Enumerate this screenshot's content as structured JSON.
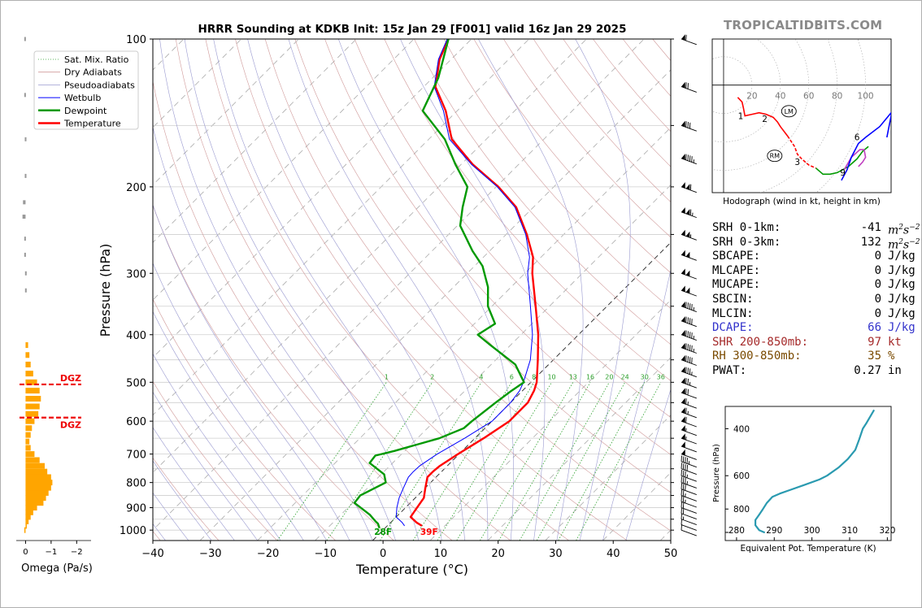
{
  "site": "TROPICALTIDBITS.COM",
  "chart_data": [
    {
      "type": "line",
      "name": "skewt",
      "title": "HRRR Sounding at KDKB Init: 15z Jan 29 [F001] valid 16z Jan 29 2025",
      "xlabel": "Temperature (°C)",
      "ylabel": "Pressure (hPa)",
      "xlim": [
        -40,
        50
      ],
      "ylim": [
        1050,
        100
      ],
      "y_scale": "log",
      "x_ticks": [
        -40,
        -30,
        -20,
        -10,
        0,
        10,
        20,
        30,
        40,
        50
      ],
      "x_tick_labels": [
        "−40",
        "−30",
        "−20",
        "−10",
        "0",
        "10",
        "20",
        "30",
        "40",
        "50"
      ],
      "y_ticks": [
        1000,
        900,
        800,
        700,
        600,
        500,
        400,
        300,
        200,
        100
      ],
      "y_tick_labels": [
        "1000",
        "900",
        "800",
        "700",
        "600",
        "500",
        "400",
        "300",
        "200",
        "100"
      ],
      "legend": {
        "position": "top-left",
        "entries": [
          {
            "label": "Sat. Mix. Ratio",
            "color": "#2ca02c",
            "style": "dotted"
          },
          {
            "label": "Dry Adiabats",
            "color": "#d09a9a",
            "style": "solid"
          },
          {
            "label": "Pseudoadiabats",
            "color": "#9a9ad0",
            "style": "solid"
          },
          {
            "label": "Wetbulb",
            "color": "#0000ff",
            "style": "solid"
          },
          {
            "label": "Dewpoint",
            "color": "#009900",
            "style": "solid"
          },
          {
            "label": "Temperature",
            "color": "#ff0000",
            "style": "solid"
          }
        ]
      },
      "mixing_ratio_labels": [
        "1",
        "2",
        "4",
        "6",
        "8",
        "10",
        "13",
        "16",
        "20",
        "24",
        "30",
        "36"
      ],
      "mixing_ratio_values": [
        1,
        2,
        4,
        6,
        8,
        10,
        13,
        16,
        20,
        24,
        30,
        36
      ],
      "series": [
        {
          "name": "Temperature",
          "color": "#ff0000",
          "p": [
            980,
            965,
            940,
            900,
            860,
            820,
            780,
            760,
            740,
            700,
            650,
            600,
            550,
            520,
            500,
            450,
            400,
            350,
            300,
            278,
            250,
            220,
            200,
            180,
            160,
            140,
            125,
            110,
            100
          ],
          "t": [
            6,
            4.5,
            2.5,
            2,
            1.5,
            0,
            -1.5,
            -1.5,
            -1.3,
            -0.2,
            1.5,
            3,
            3,
            2,
            1,
            -2.7,
            -7,
            -12.4,
            -18.7,
            -21.4,
            -26.4,
            -33,
            -39.6,
            -48,
            -56,
            -62,
            -68,
            -72,
            -74
          ]
        },
        {
          "name": "Wetbulb",
          "color": "#0000ff",
          "p": [
            980,
            965,
            940,
            900,
            860,
            820,
            780,
            760,
            740,
            700,
            650,
            600,
            550,
            520,
            500,
            450,
            400,
            350,
            300,
            278,
            250,
            220,
            200,
            180,
            160,
            140,
            125,
            110,
            100
          ],
          "t": [
            3,
            2,
            0,
            -1.5,
            -2.8,
            -3.8,
            -4.8,
            -4.9,
            -4.8,
            -3.8,
            -1.8,
            0,
            0,
            -0.5,
            -1.3,
            -4,
            -8,
            -13.3,
            -19.5,
            -22,
            -26.6,
            -33.2,
            -39.8,
            -48.2,
            -56.4,
            -62.4,
            -68.2,
            -72.2,
            -74.2
          ]
        },
        {
          "name": "Dewpoint",
          "color": "#009900",
          "p": [
            990,
            970,
            960,
            930,
            880,
            850,
            800,
            770,
            730,
            705,
            690,
            650,
            620,
            600,
            550,
            520,
            500,
            460,
            420,
            400,
            380,
            350,
            320,
            290,
            270,
            240,
            220,
            200,
            180,
            160,
            140,
            120,
            100
          ],
          "t": [
            -1,
            -2,
            -2.8,
            -5,
            -9.7,
            -10,
            -7.8,
            -9.5,
            -14,
            -14.3,
            -11.8,
            -6.2,
            -3.7,
            -3.5,
            -2.6,
            -1.9,
            -1.2,
            -5.8,
            -13.5,
            -17.5,
            -16.4,
            -20.7,
            -24,
            -28.6,
            -33,
            -39.5,
            -42.3,
            -45,
            -51,
            -57.2,
            -66,
            -69,
            -74
          ]
        }
      ],
      "annotations": [
        {
          "text": "28F",
          "color": "#009900",
          "t": 0,
          "p": 1000
        },
        {
          "text": "39F",
          "color": "#ff0000",
          "t": 8,
          "p": 1000
        }
      ]
    },
    {
      "type": "line",
      "name": "hodograph",
      "title": "",
      "xlabel": "Hodograph (wind in kt, height in km)",
      "ring_labels": [
        "20",
        "40",
        "60",
        "80",
        "100"
      ],
      "ring_values": [
        20,
        40,
        60,
        80,
        100
      ],
      "u_range": [
        -8,
        118
      ],
      "v_range": [
        -70,
        30
      ],
      "segments": [
        {
          "color": "#ff0000",
          "u": [
            10,
            13,
            14,
            15,
            20,
            25,
            30,
            35,
            38,
            40,
            45
          ],
          "v": [
            -8,
            -11,
            -15,
            -20,
            -19,
            -18,
            -19,
            -21,
            -24,
            -27,
            -33
          ]
        },
        {
          "color": "#ff0000",
          "style": "dashed",
          "u": [
            45,
            50,
            52,
            55,
            60,
            65
          ],
          "v": [
            -33,
            -40,
            -45,
            -48,
            -52,
            -54
          ]
        },
        {
          "color": "#009900",
          "u": [
            65,
            70,
            75,
            80,
            88,
            94,
            98,
            102
          ],
          "v": [
            -54,
            -58,
            -58,
            -57,
            -53,
            -48,
            -43,
            -40
          ]
        },
        {
          "color": "#c040c0",
          "u": [
            95,
            98,
            100,
            99,
            96,
            90,
            85
          ],
          "v": [
            -53,
            -50,
            -47,
            -42,
            -42,
            -47,
            -55
          ]
        },
        {
          "color": "#0000ff",
          "u": [
            83,
            87,
            90,
            95,
            100,
            110,
            118,
            118,
            115
          ],
          "v": [
            -62,
            -55,
            -47,
            -38,
            -34,
            -27,
            -18,
            -20,
            -34
          ]
        }
      ],
      "height_labels": [
        {
          "text": "1",
          "u": 12,
          "v": -22
        },
        {
          "text": "2",
          "u": 29,
          "v": -24
        },
        {
          "text": "3",
          "u": 52,
          "v": -52
        },
        {
          "text": "6",
          "u": 94,
          "v": -36
        },
        {
          "text": "9",
          "u": 84,
          "v": -59
        }
      ],
      "markers": [
        {
          "text": "LM",
          "u": 46,
          "v": -17
        },
        {
          "text": "RM",
          "u": 36,
          "v": -46
        }
      ]
    },
    {
      "type": "line",
      "name": "theta_e",
      "title": "",
      "xlabel": "Equivalent Pot. Temperature (K)",
      "ylabel": "Pressure (hPa)",
      "xlim": [
        277,
        321
      ],
      "ylim": [
        1050,
        330
      ],
      "x_ticks": [
        280,
        290,
        300,
        310,
        320
      ],
      "x_tick_labels": [
        "280",
        "290",
        "300",
        "310",
        "320"
      ],
      "y_ticks": [
        800,
        600,
        400
      ],
      "y_tick_labels": [
        "800",
        "600",
        "400"
      ],
      "series": [
        {
          "name": "Theta-e",
          "color": "#2a9ab0",
          "p": [
            980,
            960,
            920,
            880,
            840,
            800,
            760,
            720,
            700,
            680,
            650,
            620,
            600,
            560,
            520,
            480,
            440,
            400,
            380,
            340
          ],
          "t": [
            287.5,
            286,
            285,
            285,
            286,
            287,
            288,
            289.5,
            291.5,
            294,
            298,
            302,
            304,
            307,
            309.5,
            311.5,
            312.5,
            313.5,
            314.5,
            316.5
          ]
        }
      ]
    },
    {
      "type": "bar",
      "name": "omega",
      "title": "",
      "xlabel": "Omega (Pa/s)",
      "x_ticks": [
        0,
        -1,
        -2
      ],
      "x_tick_labels": [
        "0",
        "−1",
        "−2"
      ],
      "xlim": [
        0.3,
        -2.5
      ],
      "bar_color": "#ffa500",
      "dgz_labels": [
        "DGZ",
        "DGZ"
      ],
      "dgz_pressures": [
        505,
        590
      ],
      "bars": {
        "p": [
          1000,
          980,
          960,
          940,
          920,
          900,
          880,
          860,
          840,
          820,
          800,
          780,
          760,
          740,
          720,
          700,
          680,
          660,
          640,
          620,
          600,
          580,
          560,
          540,
          520,
          500,
          480,
          460,
          440,
          420
        ],
        "omega": [
          0.05,
          -0.05,
          -0.12,
          -0.2,
          -0.3,
          -0.45,
          -0.7,
          -0.8,
          -0.9,
          -1.0,
          -1.05,
          -1.0,
          -0.85,
          -0.75,
          -0.55,
          -0.35,
          -0.2,
          -0.15,
          -0.2,
          -0.25,
          -0.35,
          -0.5,
          -0.55,
          -0.6,
          -0.55,
          -0.45,
          -0.3,
          -0.2,
          -0.15,
          -0.1
        ]
      },
      "gray_bars": {
        "p": [
          100,
          130,
          160,
          190,
          215,
          230,
          255,
          275,
          300,
          325
        ],
        "omega": [
          0.05,
          0.05,
          0.03,
          0.03,
          0.1,
          0.12,
          0.05,
          0.05,
          0.02,
          0.02
        ]
      }
    }
  ],
  "indices": {
    "srh": [
      {
        "label": "SRH 0-1km:",
        "value": "-41"
      },
      {
        "label": "SRH 0-3km:",
        "value": "132"
      }
    ],
    "srh_unit_base": "m",
    "srh_unit_sup1": "2",
    "srh_unit_mid": "s",
    "srh_unit_sup2": "−2",
    "rows": [
      {
        "label": "SBCAPE:",
        "value": "0",
        "unit": "J/kg",
        "color": "#000000"
      },
      {
        "label": "MLCAPE:",
        "value": "0",
        "unit": "J/kg",
        "color": "#000000"
      },
      {
        "label": "MUCAPE:",
        "value": "0",
        "unit": "J/kg",
        "color": "#000000"
      },
      {
        "label": "SBCIN:",
        "value": "0",
        "unit": "J/kg",
        "color": "#000000"
      },
      {
        "label": "MLCIN:",
        "value": "0",
        "unit": "J/kg",
        "color": "#000000"
      },
      {
        "label": "DCAPE:",
        "value": "66",
        "unit": "J/kg",
        "color": "#3333cc"
      },
      {
        "label": "SHR 200-850mb:",
        "value": "97",
        "unit": "kt",
        "color": "#a52a2a"
      },
      {
        "label": "RH 300-850mb:",
        "value": "35",
        "unit": "%",
        "color": "#7a4a00"
      },
      {
        "label": "PWAT:",
        "value": "0.27",
        "unit": "in",
        "color": "#000000"
      }
    ]
  },
  "wind_barbs": {
    "p": [
      100,
      125,
      150,
      175,
      200,
      225,
      250,
      275,
      300,
      325,
      350,
      375,
      400,
      425,
      450,
      475,
      500,
      525,
      550,
      575,
      600,
      625,
      650,
      675,
      700,
      725,
      750,
      775,
      800,
      825,
      850,
      875,
      900,
      925,
      950,
      975,
      1000
    ],
    "speed_kt": [
      60,
      70,
      80,
      95,
      110,
      115,
      105,
      100,
      100,
      100,
      95,
      90,
      95,
      95,
      90,
      85,
      75,
      70,
      65,
      65,
      60,
      55,
      55,
      50,
      50,
      45,
      40,
      35,
      35,
      30,
      25,
      25,
      20,
      20,
      15,
      10,
      10
    ]
  }
}
